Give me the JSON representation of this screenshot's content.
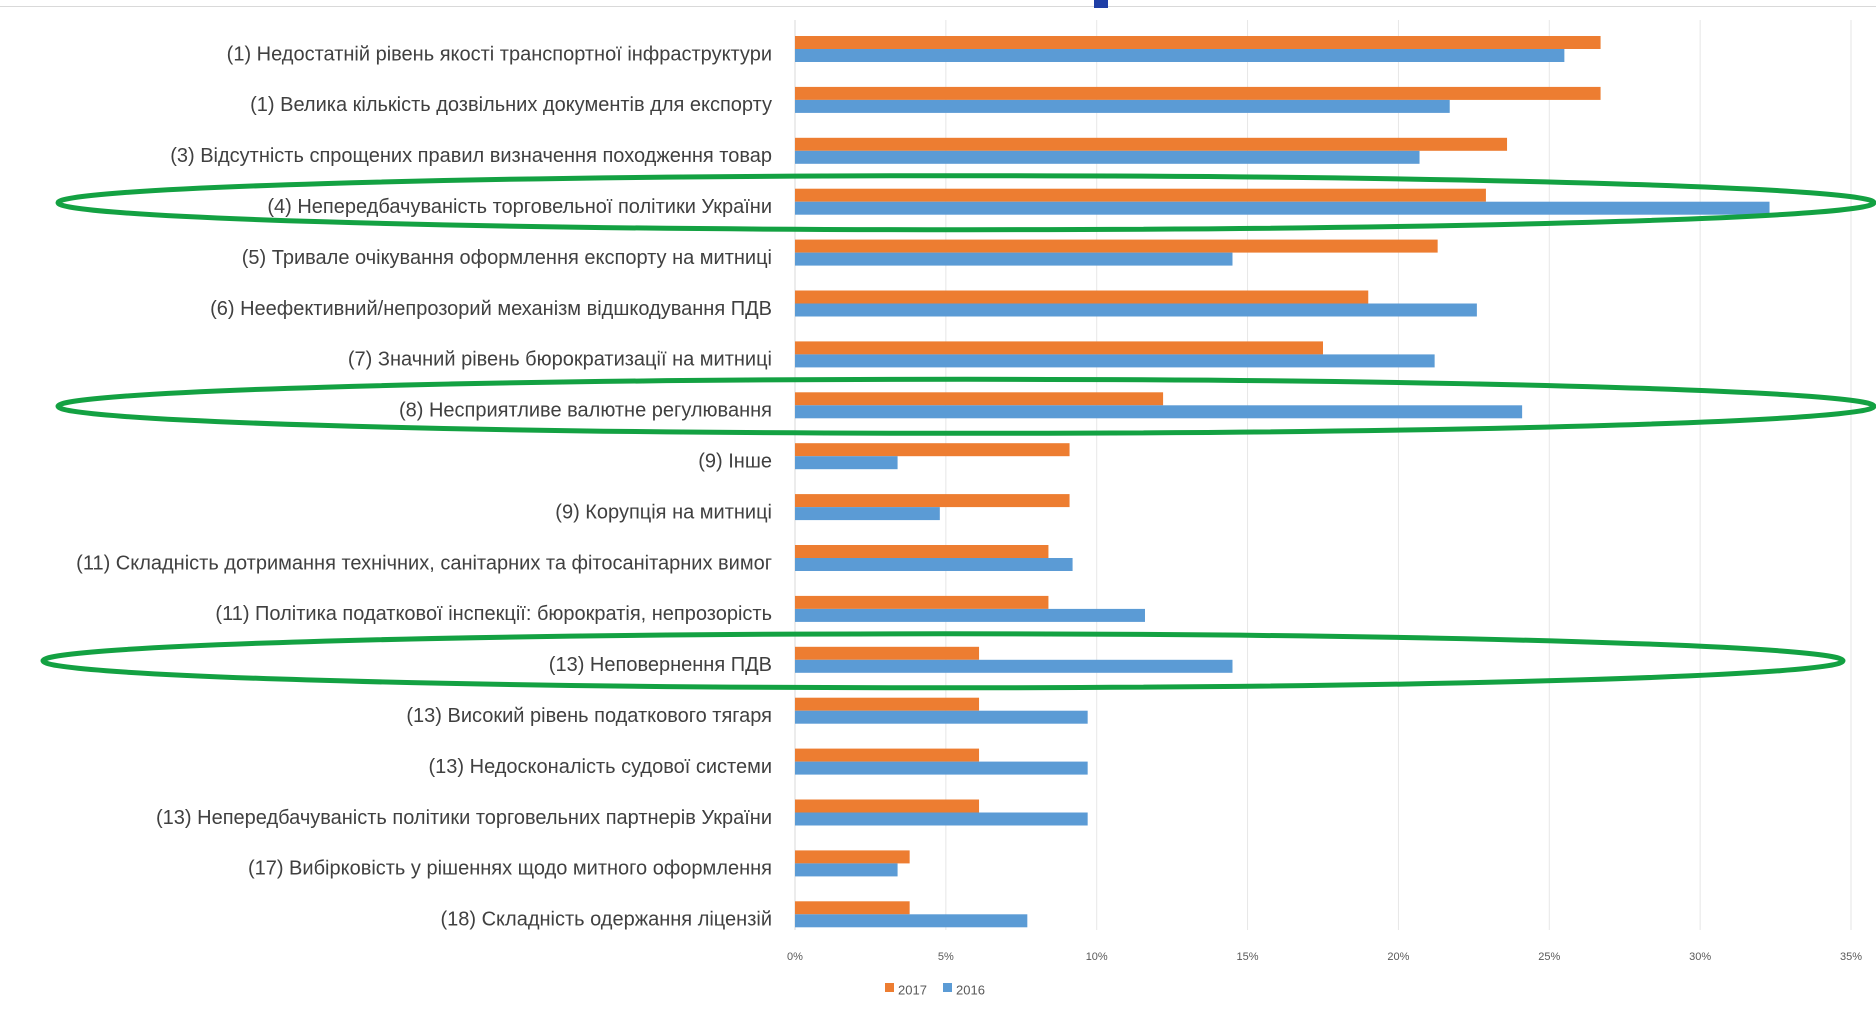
{
  "chart_data": {
    "type": "bar",
    "orientation": "horizontal",
    "categories": [
      "(1) Недостатній рівень якості транспортної інфраструктури",
      "(1) Велика кількість дозвільних документів для експорту",
      "(3) Відсутність спрощених правил визначення походження товар",
      "(4) Непередбачуваність торговельної політики України",
      "(5) Тривале очікування оформлення експорту на митниці",
      "(6) Неефективний/непрозорий  механізм відшкодування ПДВ",
      "(7) Значний рівень бюрократизації на митниці",
      "(8) Несприятливе валютне регулювання",
      "(9) Інше",
      "(9) Корупція на митниці",
      "(11) Складність дотримання технічних, санітарних та фітосанітарних вимог",
      "(11) Політика податкової інспекції: бюрократія, непрозорість",
      "(13) Неповернення ПДВ",
      "(13) Високий рівень податкового тягаря",
      "(13) Недосконалість судової системи",
      "(13) Непередбачуваність політики торговельних партнерів України",
      "(17) Вибірковість у рішеннях щодо митного оформлення",
      "(18) Складність одержання ліцензій"
    ],
    "series": [
      {
        "name": "2017",
        "color": "#ED7D31",
        "values": [
          26.7,
          26.7,
          23.6,
          22.9,
          21.3,
          19.0,
          17.5,
          12.2,
          9.1,
          9.1,
          8.4,
          8.4,
          6.1,
          6.1,
          6.1,
          6.1,
          3.8,
          3.8
        ]
      },
      {
        "name": "2016",
        "color": "#5B9BD5",
        "values": [
          25.5,
          21.7,
          20.7,
          32.3,
          14.5,
          22.6,
          21.2,
          24.1,
          3.4,
          4.8,
          9.2,
          11.6,
          14.5,
          9.7,
          9.7,
          9.7,
          3.4,
          7.7
        ]
      }
    ],
    "xlim": [
      0,
      35
    ],
    "xticks": [
      "0%",
      "5%",
      "10%",
      "15%",
      "20%",
      "25%",
      "30%",
      "35%"
    ],
    "grid": true,
    "legend_position": "bottom",
    "highlighted_categories": [
      "(4) Непередбачуваність торговельної політики України",
      "(8) Несприятливе валютне регулювання",
      "(13) Неповернення ПДВ"
    ],
    "highlight_color": "#13A142",
    "title": "",
    "xlabel": "",
    "ylabel": ""
  }
}
